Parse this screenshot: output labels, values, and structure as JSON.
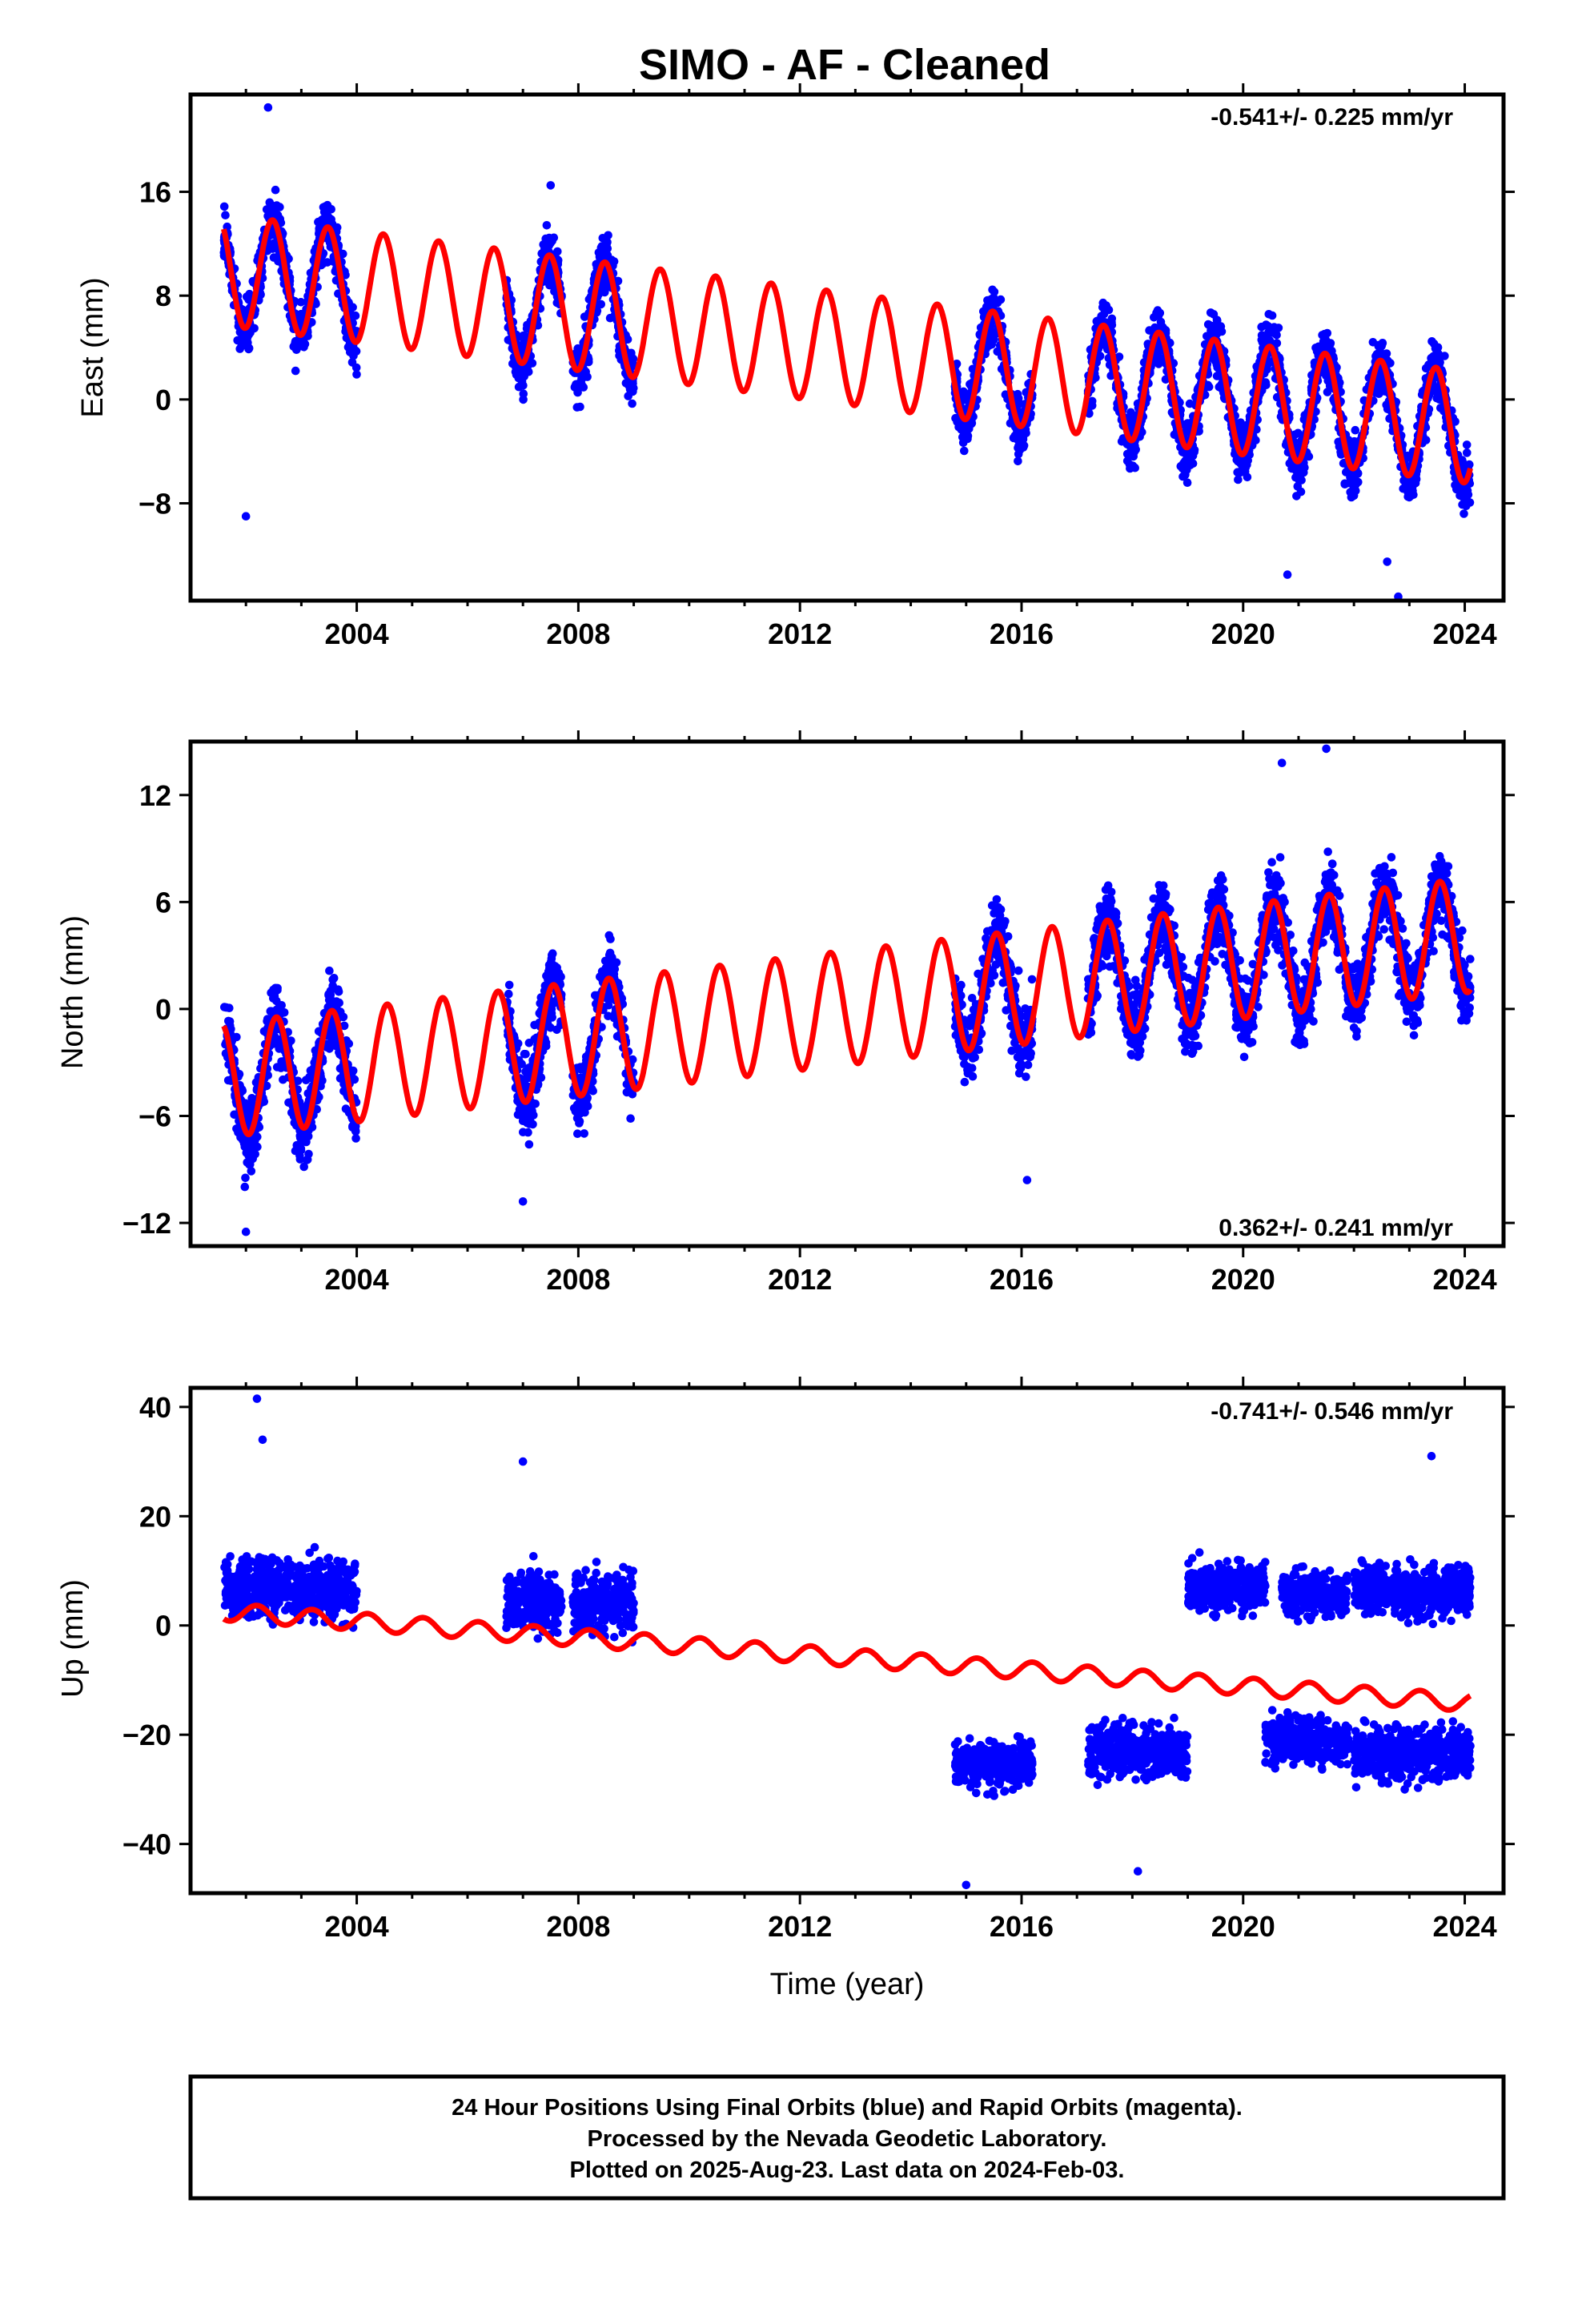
{
  "title": "SIMO  - AF - Cleaned",
  "x_axis_label": "Time (year)",
  "footer": {
    "lines": [
      "24 Hour Positions Using Final Orbits (blue) and Rapid Orbits (magenta).",
      "Processed by the Nevada Geodetic Laboratory.",
      "Plotted on 2025-Aug-23. Last data on 2024-Feb-03."
    ]
  },
  "colors": {
    "points": "#0000ff",
    "fit": "#ff0000",
    "frame": "#000000"
  },
  "chart_data": [
    {
      "type": "scatter",
      "component": "east",
      "ylabel": "East (mm)",
      "rate_text": "-0.541+/- 0.225 mm/yr",
      "rate_position": "top-right",
      "xlim": [
        2001.0,
        2024.7
      ],
      "ylim": [
        -15.5,
        23.5
      ],
      "xticks": [
        2004,
        2008,
        2012,
        2016,
        2020,
        2024
      ],
      "yticks": [
        16,
        8,
        0,
        -8
      ],
      "data_segments": [
        [
          2001.6,
          2004.0
        ],
        [
          2006.7,
          2007.7
        ],
        [
          2007.9,
          2009.0
        ],
        [
          2014.8,
          2016.2
        ],
        [
          2017.2,
          2024.1
        ]
      ],
      "fit": {
        "start": 2001.6,
        "end": 2024.1,
        "offset": 10.0,
        "rate": -0.541,
        "annual_amplitude": 4.3,
        "peak_phase": 0.48
      },
      "scatter_spread": 2.6,
      "outliers": [
        [
          2002.4,
          22.5
        ],
        [
          2002.0,
          -9.0
        ],
        [
          2007.5,
          16.5
        ],
        [
          2022.8,
          -15.2
        ],
        [
          2020.8,
          -13.5
        ],
        [
          2022.6,
          -12.5
        ]
      ]
    },
    {
      "type": "scatter",
      "component": "north",
      "ylabel": "North (mm)",
      "rate_text": "0.362+/- 0.241 mm/yr",
      "rate_position": "bottom-right",
      "xlim": [
        2001.0,
        2024.7
      ],
      "ylim": [
        -13.3,
        15.0
      ],
      "xticks": [
        2004,
        2008,
        2012,
        2016,
        2020,
        2024
      ],
      "yticks": [
        12,
        6,
        0,
        -6,
        -12
      ],
      "data_segments": [
        [
          2001.6,
          2004.0
        ],
        [
          2006.7,
          2007.7
        ],
        [
          2007.9,
          2009.0
        ],
        [
          2014.8,
          2016.2
        ],
        [
          2017.2,
          2024.1
        ]
      ],
      "fit": {
        "start": 2001.6,
        "end": 2024.1,
        "offset": -4.0,
        "rate": 0.362,
        "annual_amplitude": 3.2,
        "peak_phase": 0.55
      },
      "scatter_spread": 2.4,
      "outliers": [
        [
          2002.0,
          -12.5
        ],
        [
          2007.0,
          -10.8
        ],
        [
          2021.5,
          14.6
        ],
        [
          2020.7,
          13.8
        ],
        [
          2016.1,
          -9.6
        ]
      ]
    },
    {
      "type": "scatter",
      "component": "up",
      "ylabel": "Up (mm)",
      "rate_text": "-0.741+/- 0.546 mm/yr",
      "rate_position": "top-right",
      "xlim": [
        2001.0,
        2024.7
      ],
      "ylim": [
        -49.0,
        43.5
      ],
      "xticks": [
        2004,
        2008,
        2012,
        2016,
        2020,
        2024
      ],
      "yticks": [
        40,
        20,
        0,
        -20,
        -40
      ],
      "data_segments": [
        [
          2001.6,
          2004.0
        ],
        [
          2006.7,
          2007.7
        ],
        [
          2007.9,
          2009.0
        ],
        [
          2014.8,
          2016.2
        ],
        [
          2017.2,
          2024.1
        ]
      ],
      "fit": {
        "start": 2001.6,
        "end": 2024.1,
        "offset": 2.5,
        "rate": -0.741,
        "annual_amplitude": 1.6,
        "peak_phase": 0.2
      },
      "cluster_levels": [
        {
          "from": 2001.6,
          "to": 2004.0,
          "center": 7,
          "spread": 7
        },
        {
          "from": 2006.7,
          "to": 2007.7,
          "center": 5,
          "spread": 7
        },
        {
          "from": 2007.9,
          "to": 2009.0,
          "center": 5,
          "spread": 7
        },
        {
          "from": 2014.8,
          "to": 2016.2,
          "center": -24,
          "spread": 5
        },
        {
          "from": 2017.2,
          "to": 2019.0,
          "center": -21,
          "spread": 6
        },
        {
          "from": 2019.0,
          "to": 2020.4,
          "center": 9,
          "spread": 6
        },
        {
          "from": 2020.4,
          "to": 2020.7,
          "center": -19,
          "spread": 6
        },
        {
          "from": 2020.7,
          "to": 2021.9,
          "center": 8,
          "spread": 5
        },
        {
          "from": 2020.7,
          "to": 2021.9,
          "center": -19,
          "spread": 5
        },
        {
          "from": 2022.0,
          "to": 2024.1,
          "center": 9,
          "spread": 6
        },
        {
          "from": 2022.0,
          "to": 2024.1,
          "center": -21,
          "spread": 6
        }
      ],
      "outliers": [
        [
          2002.2,
          41.5
        ],
        [
          2002.3,
          34.0
        ],
        [
          2023.4,
          31.0
        ],
        [
          2015.0,
          -47.5
        ],
        [
          2018.1,
          -45.0
        ],
        [
          2007.0,
          30.0
        ]
      ]
    }
  ]
}
